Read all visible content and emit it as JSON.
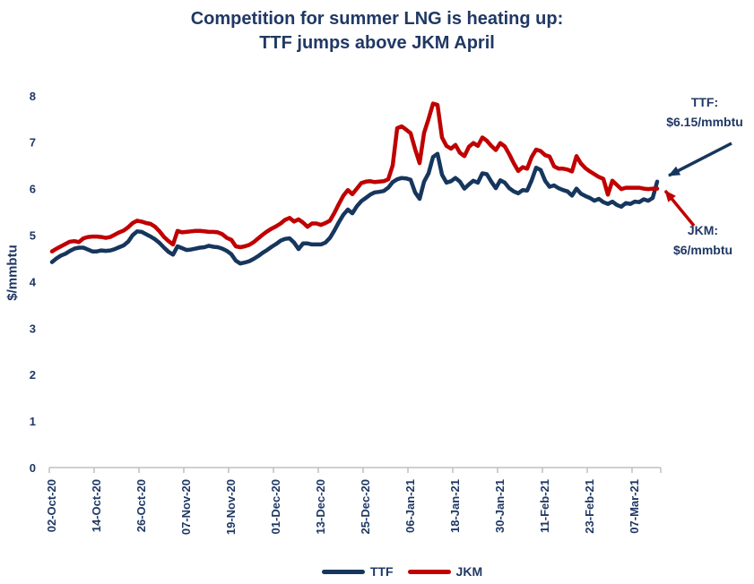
{
  "title": {
    "line1": "Competition for summer LNG is heating up:",
    "line2": "TTF jumps above JKM April"
  },
  "annotations": {
    "ttf": {
      "line1": "TTF:",
      "line2": "$6.15/mmbtu"
    },
    "jkm": {
      "line1": "JKM:",
      "line2": "$6/mmbtu"
    }
  },
  "colors": {
    "ttf_line": "#17365d",
    "jkm_line": "#c00000",
    "text": "#1f3864",
    "axis": "#bfbfbf"
  },
  "chart_data": {
    "type": "line",
    "title": "Competition for summer LNG is heating up: TTF jumps above JKM April",
    "xlabel": "",
    "ylabel": "$/mmbtu",
    "ylim": [
      0,
      8
    ],
    "yticks": [
      0,
      1,
      2,
      3,
      4,
      5,
      6,
      7,
      8
    ],
    "grid": false,
    "legend_position": "bottom",
    "x_tick_labels": [
      "02-Oct-20",
      "14-Oct-20",
      "26-Oct-20",
      "07-Nov-20",
      "19-Nov-20",
      "01-Dec-20",
      "13-Dec-20",
      "25-Dec-20",
      "06-Jan-21",
      "18-Jan-21",
      "30-Jan-21",
      "11-Feb-21",
      "23-Feb-21",
      "07-Mar-21"
    ],
    "points_per_tick": 10,
    "series": [
      {
        "name": "TTF",
        "color": "#17365d",
        "end_label": "TTF: $6.15/mmbtu",
        "values": [
          4.42,
          4.5,
          4.56,
          4.6,
          4.66,
          4.71,
          4.73,
          4.73,
          4.69,
          4.65,
          4.65,
          4.67,
          4.66,
          4.67,
          4.7,
          4.74,
          4.78,
          4.86,
          5.0,
          5.08,
          5.07,
          5.02,
          4.97,
          4.91,
          4.83,
          4.73,
          4.64,
          4.58,
          4.76,
          4.72,
          4.68,
          4.69,
          4.71,
          4.73,
          4.74,
          4.77,
          4.75,
          4.74,
          4.71,
          4.66,
          4.59,
          4.45,
          4.39,
          4.41,
          4.44,
          4.49,
          4.55,
          4.62,
          4.68,
          4.75,
          4.81,
          4.88,
          4.92,
          4.93,
          4.84,
          4.7,
          4.82,
          4.82,
          4.8,
          4.8,
          4.8,
          4.84,
          4.94,
          5.1,
          5.28,
          5.44,
          5.55,
          5.47,
          5.62,
          5.73,
          5.8,
          5.87,
          5.92,
          5.93,
          5.95,
          6.02,
          6.14,
          6.2,
          6.23,
          6.22,
          6.19,
          5.92,
          5.78,
          6.15,
          6.33,
          6.68,
          6.75,
          6.3,
          6.13,
          6.16,
          6.23,
          6.15,
          6.0,
          6.09,
          6.17,
          6.13,
          6.33,
          6.31,
          6.15,
          6.01,
          6.18,
          6.13,
          6.01,
          5.94,
          5.9,
          5.97,
          5.96,
          6.18,
          6.45,
          6.4,
          6.17,
          6.04,
          6.07,
          6.01,
          5.97,
          5.94,
          5.85,
          6.0,
          5.89,
          5.84,
          5.8,
          5.74,
          5.78,
          5.71,
          5.67,
          5.72,
          5.65,
          5.61,
          5.69,
          5.67,
          5.72,
          5.71,
          5.77,
          5.74,
          5.8,
          6.15
        ]
      },
      {
        "name": "JKM",
        "color": "#c00000",
        "end_label": "JKM: $6/mmbtu",
        "values": [
          4.65,
          4.71,
          4.76,
          4.81,
          4.86,
          4.87,
          4.85,
          4.93,
          4.96,
          4.97,
          4.97,
          4.96,
          4.94,
          4.96,
          5.01,
          5.06,
          5.1,
          5.17,
          5.26,
          5.31,
          5.29,
          5.26,
          5.24,
          5.18,
          5.08,
          4.96,
          4.87,
          4.8,
          5.09,
          5.06,
          5.07,
          5.08,
          5.09,
          5.09,
          5.08,
          5.07,
          5.07,
          5.06,
          5.02,
          4.94,
          4.9,
          4.76,
          4.74,
          4.76,
          4.79,
          4.85,
          4.93,
          5.01,
          5.08,
          5.14,
          5.19,
          5.25,
          5.33,
          5.37,
          5.29,
          5.34,
          5.27,
          5.18,
          5.25,
          5.25,
          5.22,
          5.26,
          5.31,
          5.48,
          5.67,
          5.85,
          5.97,
          5.88,
          6.0,
          6.12,
          6.15,
          6.16,
          6.14,
          6.15,
          6.16,
          6.2,
          6.5,
          7.3,
          7.34,
          7.27,
          7.19,
          6.85,
          6.55,
          7.2,
          7.5,
          7.83,
          7.8,
          7.1,
          6.92,
          6.86,
          6.94,
          6.77,
          6.7,
          6.9,
          6.98,
          6.92,
          7.1,
          7.03,
          6.92,
          6.83,
          6.98,
          6.91,
          6.74,
          6.55,
          6.38,
          6.46,
          6.43,
          6.68,
          6.84,
          6.81,
          6.72,
          6.69,
          6.48,
          6.43,
          6.43,
          6.41,
          6.37,
          6.7,
          6.54,
          6.44,
          6.37,
          6.31,
          6.25,
          6.21,
          5.87,
          6.17,
          6.08,
          5.99,
          6.02,
          6.02,
          6.02,
          6.02,
          6.0,
          5.99,
          6.0,
          6.0
        ]
      }
    ]
  }
}
